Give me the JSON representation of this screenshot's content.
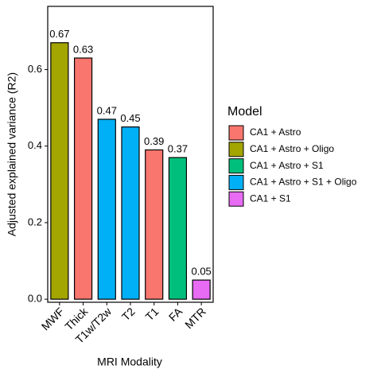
{
  "chart_data": {
    "type": "bar",
    "x_label": "MRI Modality",
    "y_label": "Adjusted explained variance (R2)",
    "legend_title": "Model",
    "categories": [
      "MWF",
      "Thick",
      "T1w/T2w",
      "T2",
      "T1",
      "FA",
      "MTR"
    ],
    "series": [
      {
        "name": "CA1 + Astro",
        "color": "#f8766d",
        "values": [
          null,
          0.63,
          null,
          null,
          0.39,
          null,
          null
        ]
      },
      {
        "name": "CA1 + Astro + Oligo",
        "color": "#a3a500",
        "values": [
          0.67,
          null,
          null,
          null,
          null,
          null,
          null
        ]
      },
      {
        "name": "CA1 + Astro + S1",
        "color": "#00bf7d",
        "values": [
          null,
          null,
          null,
          null,
          null,
          0.37,
          null
        ]
      },
      {
        "name": "CA1 + Astro + S1 + Oligo",
        "color": "#00b0f6",
        "values": [
          null,
          null,
          0.47,
          0.45,
          null,
          null,
          null
        ]
      },
      {
        "name": "CA1 + S1",
        "color": "#e76bf3",
        "values": [
          null,
          null,
          null,
          null,
          null,
          null,
          0.05
        ]
      }
    ],
    "ylim": [
      -0.008,
      0.765
    ],
    "yticks": [
      {
        "value": 0,
        "label": "0.0"
      },
      0.2,
      0.4,
      0.6
    ],
    "legend": "right"
  }
}
